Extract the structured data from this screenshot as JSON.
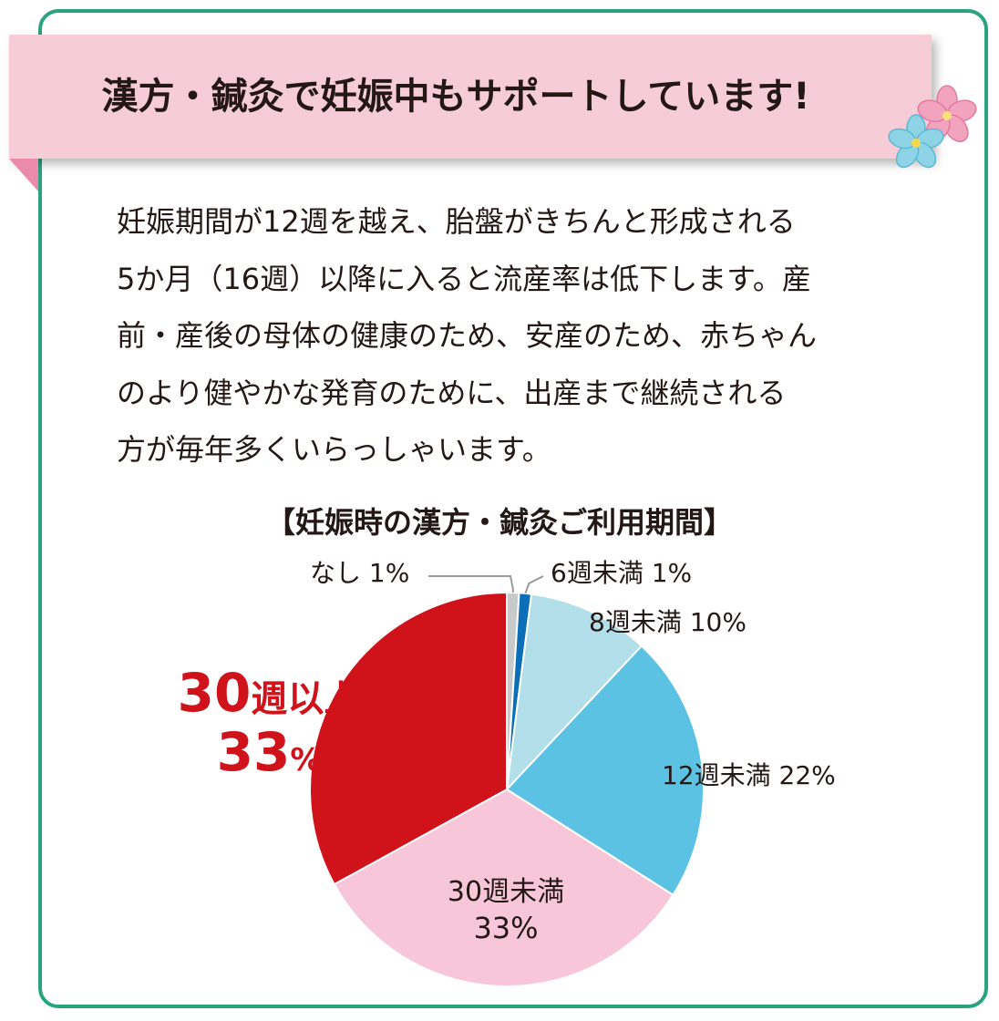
{
  "banner": {
    "title": "漢方・鍼灸で妊娠中もサポートしています!"
  },
  "intro": {
    "lines": [
      "妊娠期間が12週を越え、胎盤がきちんと形成される",
      "5か月（16週）以降に入ると流産率は低下します。産",
      "前・産後の母体の健康のため、安産のため、赤ちゃん",
      "のより健やかな発育のために、出産まで継続される",
      "方が毎年多くいらっしゃいます。"
    ]
  },
  "icons": {
    "pink_flower": "sakura-pink-icon",
    "blue_flower": "flower-blue-icon"
  },
  "colors": {
    "frame": "#2aa37f",
    "banner": "#f7ccd9",
    "banner_fold": "#ea8bab",
    "accent_red": "#d0121b"
  },
  "chart_data": {
    "type": "pie",
    "title": "【妊娠時の漢方・鍼灸ご利用期間】",
    "start_angle_deg": 0,
    "direction": "clockwise",
    "slices": [
      {
        "label": "なし",
        "value": 1,
        "display": "なし 1%",
        "color": "#c8c9ca"
      },
      {
        "label": "6週未満",
        "value": 1,
        "display": "6週未満 1%",
        "color": "#0a6fb8"
      },
      {
        "label": "8週未満",
        "value": 10,
        "display": "8週未満 10%",
        "color": "#b2dfea"
      },
      {
        "label": "12週未満",
        "value": 22,
        "display": "12週未満 22%",
        "color": "#5bc2e4"
      },
      {
        "label": "30週未満",
        "value": 33,
        "display_name": "30週未満",
        "display_value": "33%",
        "color": "#f7c7d9"
      },
      {
        "label": "30週以上",
        "value": 33,
        "display_number": "30",
        "display_name": "週以上",
        "display_value": "33",
        "display_unit": "%",
        "color": "#d0121b"
      }
    ]
  }
}
